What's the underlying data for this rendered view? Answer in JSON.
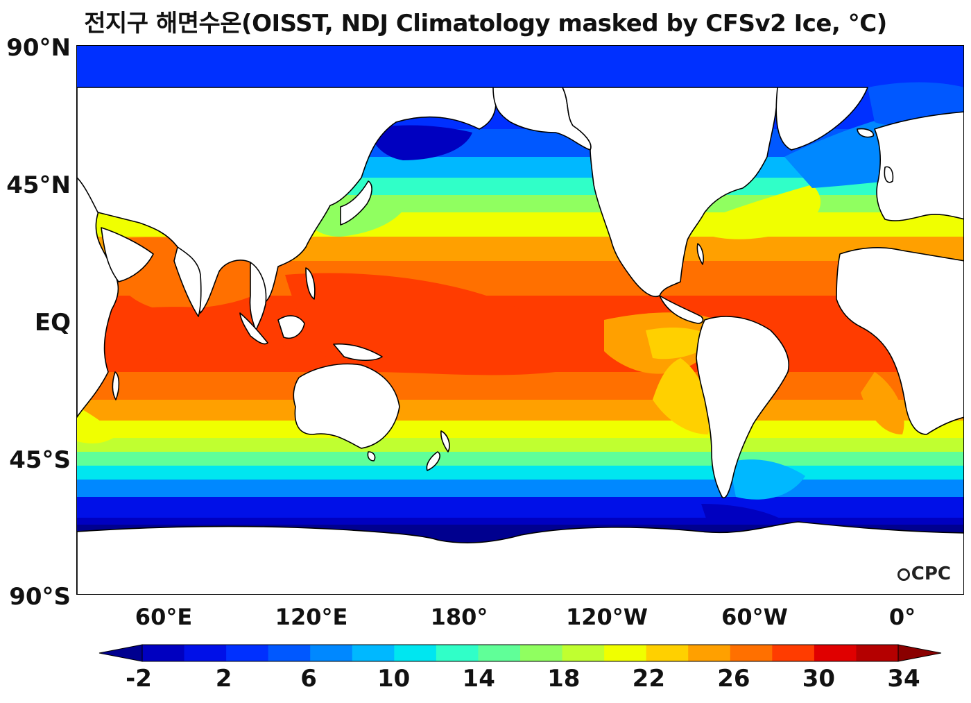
{
  "title": "전지구 해면수온(OISST, NDJ Climatology masked by CFSv2 Ice, °C)",
  "map": {
    "projection": "equirectangular, centered at 150°W",
    "lat_ticks": [
      "90°N",
      "45°N",
      "EQ",
      "45°S",
      "90°S"
    ],
    "lon_ticks": [
      "60°E",
      "120°E",
      "180°",
      "120°W",
      "60°W",
      "0°"
    ],
    "logo": "CPC",
    "land_color": "#ffffff",
    "coastline_color": "#000000"
  },
  "colorbar": {
    "tick_labels": [
      "-2",
      "2",
      "6",
      "10",
      "14",
      "18",
      "22",
      "26",
      "30",
      "34"
    ],
    "min": -2,
    "max": 34,
    "step": 2,
    "extend": "both",
    "colors": [
      "#00008f",
      "#0000c0",
      "#0010e8",
      "#0030ff",
      "#0058ff",
      "#0088ff",
      "#00b8ff",
      "#00e6f0",
      "#30ffc8",
      "#60ff98",
      "#90ff60",
      "#c0ff30",
      "#f0ff00",
      "#ffd000",
      "#ffa000",
      "#ff7000",
      "#ff3c00",
      "#e00000",
      "#b40000",
      "#8a0000"
    ]
  }
}
